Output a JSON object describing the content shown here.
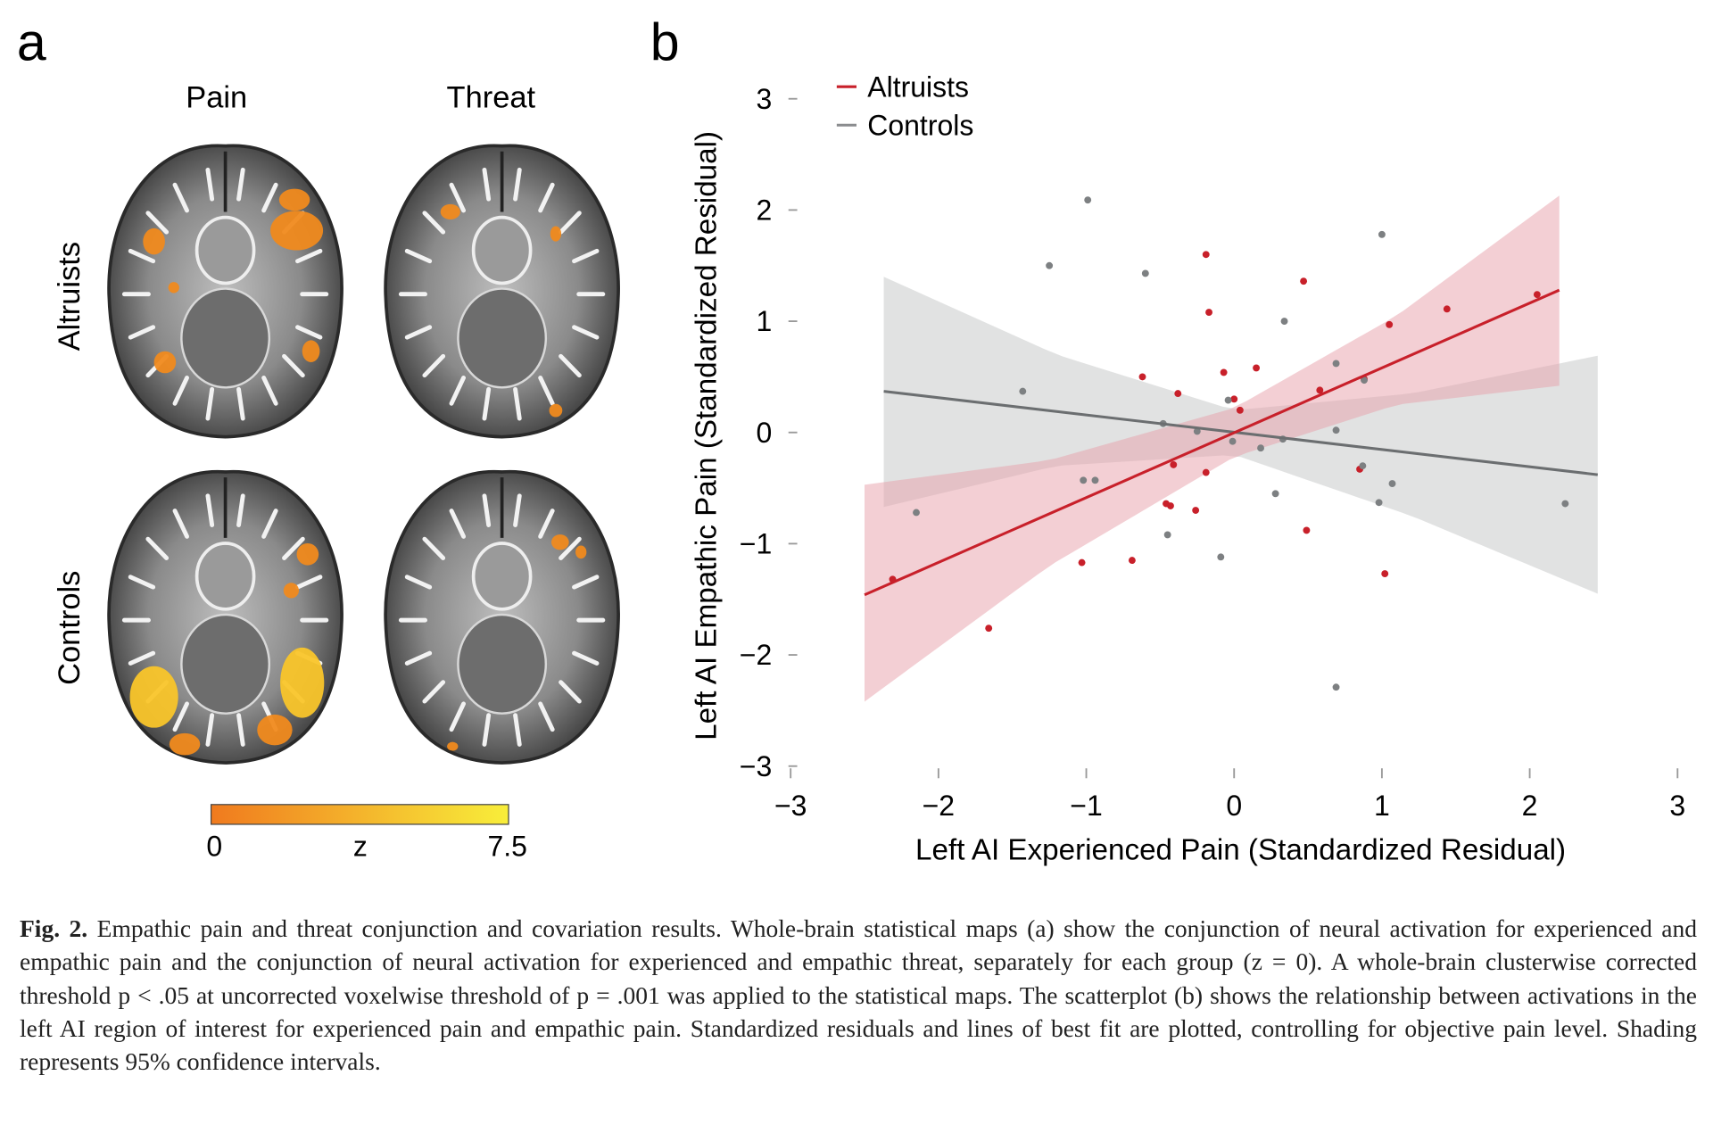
{
  "panel_a": {
    "label": "a",
    "columns": [
      "Pain",
      "Threat"
    ],
    "rows": [
      "Altruists",
      "Controls"
    ],
    "colorbar": {
      "min_label": "0",
      "mid_label": "z",
      "max_label": "7.5",
      "colors": [
        "#f07a1e",
        "#f8ee3a"
      ]
    }
  },
  "chart_data": {
    "type": "scatter",
    "panel_label": "b",
    "xlabel": "Left AI Experienced Pain (Standardized Residual)",
    "ylabel": "Left AI Empathic Pain (Standardized Residual)",
    "xlim": [
      -3,
      3
    ],
    "ylim": [
      -3,
      3
    ],
    "xticks": [
      -3,
      -2,
      -1,
      0,
      1,
      2,
      3
    ],
    "xtick_labels": [
      "−3",
      "−2",
      "−1",
      "0",
      "1",
      "2",
      "3"
    ],
    "yticks": [
      3,
      2,
      1,
      0,
      -1,
      -2,
      -3
    ],
    "ytick_labels": [
      "3",
      "2",
      "1",
      "0",
      "−1",
      "−2",
      "−3"
    ],
    "grid": false,
    "legend": "top-left",
    "series": [
      {
        "name": "Altruists",
        "color": "#c8202a",
        "band_color": "#e8a0aa",
        "points": [
          [
            -0.19,
            1.6
          ],
          [
            0.47,
            1.36
          ],
          [
            -0.17,
            1.08
          ],
          [
            1.44,
            1.11
          ],
          [
            2.05,
            1.24
          ],
          [
            1.05,
            0.97
          ],
          [
            -0.07,
            0.54
          ],
          [
            0.15,
            0.58
          ],
          [
            -0.62,
            0.5
          ],
          [
            -0.38,
            0.35
          ],
          [
            0.58,
            0.38
          ],
          [
            0.88,
            0.48
          ],
          [
            0.0,
            0.3
          ],
          [
            0.04,
            0.2
          ],
          [
            -0.41,
            -0.29
          ],
          [
            -0.19,
            -0.36
          ],
          [
            -0.46,
            -0.64
          ],
          [
            -0.43,
            -0.66
          ],
          [
            -0.26,
            -0.7
          ],
          [
            0.49,
            -0.88
          ],
          [
            -1.03,
            -1.17
          ],
          [
            -0.69,
            -1.15
          ],
          [
            1.02,
            -1.27
          ],
          [
            -2.31,
            -1.32
          ],
          [
            -1.66,
            -1.76
          ],
          [
            0.85,
            -0.33
          ]
        ],
        "fit": {
          "x": [
            -2.5,
            2.2
          ],
          "y": [
            -1.46,
            1.28
          ]
        },
        "ci_band": [
          [
            -2.5,
            -2.42,
            -0.47
          ],
          [
            -1.25,
            -1.2,
            -0.25
          ],
          [
            0,
            -0.22,
            0.22
          ],
          [
            1.1,
            0.25,
            1.05
          ],
          [
            2.2,
            0.42,
            2.13
          ]
        ]
      },
      {
        "name": "Controls",
        "color": "#6b6e70",
        "band_color": "#c9cbcb",
        "points": [
          [
            -0.99,
            2.09
          ],
          [
            -1.25,
            1.5
          ],
          [
            -0.6,
            1.43
          ],
          [
            1.0,
            1.78
          ],
          [
            0.34,
            1.0
          ],
          [
            -1.43,
            0.37
          ],
          [
            0.69,
            0.62
          ],
          [
            0.88,
            0.47
          ],
          [
            -0.04,
            0.29
          ],
          [
            -0.25,
            0.01
          ],
          [
            0.69,
            0.02
          ],
          [
            -0.48,
            0.08
          ],
          [
            -0.01,
            -0.08
          ],
          [
            0.18,
            -0.14
          ],
          [
            0.33,
            -0.06
          ],
          [
            -1.02,
            -0.43
          ],
          [
            -0.94,
            -0.43
          ],
          [
            0.87,
            -0.3
          ],
          [
            1.07,
            -0.46
          ],
          [
            -2.15,
            -0.72
          ],
          [
            0.28,
            -0.55
          ],
          [
            0.98,
            -0.63
          ],
          [
            2.24,
            -0.64
          ],
          [
            -0.45,
            -0.92
          ],
          [
            -0.09,
            -1.12
          ],
          [
            0.69,
            -2.29
          ]
        ],
        "fit": {
          "x": [
            -2.37,
            2.46
          ],
          "y": [
            0.37,
            -0.38
          ]
        },
        "ci_band": [
          [
            -2.37,
            -0.67,
            1.4
          ],
          [
            -1.2,
            -0.3,
            0.7
          ],
          [
            0,
            -0.2,
            0.2
          ],
          [
            1.2,
            -0.75,
            0.35
          ],
          [
            2.46,
            -1.45,
            0.69
          ]
        ]
      }
    ]
  },
  "caption": {
    "label": "Fig. 2.",
    "text": " Empathic pain and threat conjunction and covariation results. Whole-brain statistical maps (a) show the conjunction of neural activation for experienced and empathic pain and the conjunction of neural activation for experienced and empathic threat, separately for each group (z = 0). A whole-brain clusterwise corrected threshold p < .05 at uncorrected voxelwise threshold of p = .001 was applied to the statistical maps. The scatterplot (b) shows the relationship between activations in the left AI region of interest for experienced pain and empathic pain. Standardized residuals and lines of best fit are plotted, controlling for objective pain level. Shading represents 95% confidence intervals."
  }
}
